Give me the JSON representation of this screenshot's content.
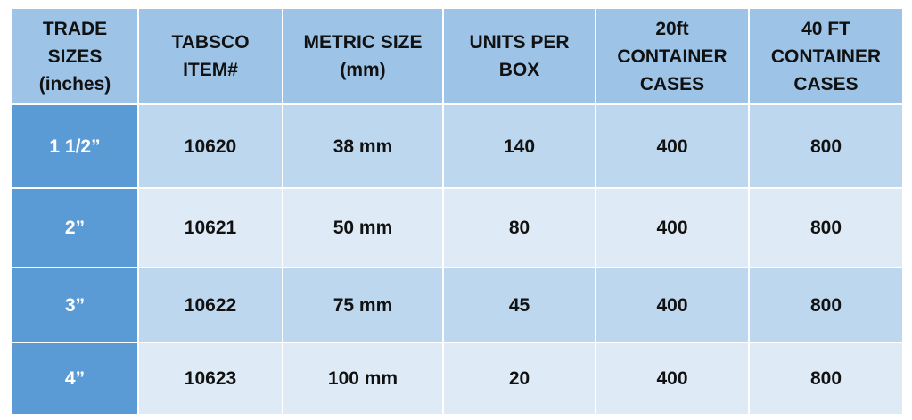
{
  "table": {
    "header": [
      [
        "TRADE",
        "SIZES",
        "(inches)"
      ],
      [
        "TABSCO",
        "ITEM#"
      ],
      [
        "METRIC SIZE",
        "(mm)"
      ],
      [
        "UNITS PER",
        "BOX"
      ],
      [
        "20ft",
        "CONTAINER",
        "CASES"
      ],
      [
        "40 FT",
        "CONTAINER",
        "CASES"
      ]
    ],
    "rows": [
      [
        "1 1/2”",
        "10620",
        "38 mm",
        "140",
        "400",
        "800"
      ],
      [
        "2”",
        "10621",
        "50 mm",
        "80",
        "400",
        "800"
      ],
      [
        "3”",
        "10622",
        "75 mm",
        "45",
        "400",
        "800"
      ],
      [
        "4”",
        "10623",
        "100 mm",
        "20",
        "400",
        "800"
      ]
    ]
  }
}
